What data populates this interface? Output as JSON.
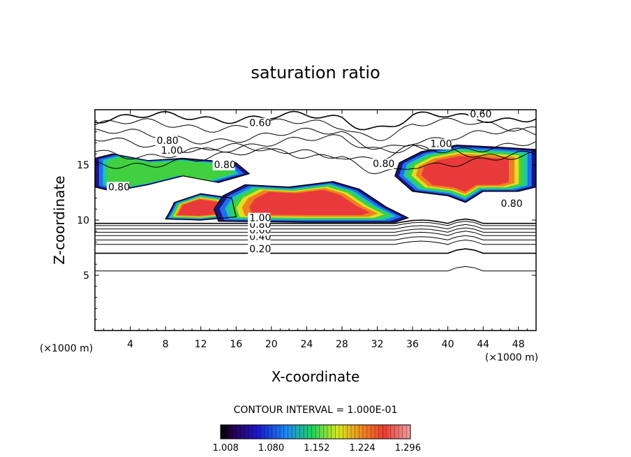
{
  "chart_data": {
    "type": "heatmap",
    "title": "saturation ratio",
    "xlabel": "X-coordinate",
    "ylabel": "Z-coordinate",
    "x_unit_label": "(×1000 m)",
    "z_unit_label": "(×1000 m)",
    "xlim": [
      0,
      50
    ],
    "ylim": [
      0,
      20
    ],
    "x_ticks": [
      "4",
      "8",
      "12",
      "16",
      "20",
      "24",
      "28",
      "32",
      "36",
      "40",
      "44",
      "48"
    ],
    "y_ticks": [
      "5",
      "10",
      "15"
    ],
    "contour_interval_text": "CONTOUR INTERVAL = 1.000E-01",
    "colorbar": {
      "colormap": "rainbow (black → blue → green → yellow → red)",
      "tick_labels": [
        "1.008",
        "1.080",
        "1.152",
        "1.224",
        "1.296"
      ],
      "range": [
        1.0,
        1.3
      ]
    },
    "contour_labels": [
      {
        "text": "0.20",
        "x": 17.5,
        "z": 7.1
      },
      {
        "text": "0.40",
        "x": 17.5,
        "z": 8.2
      },
      {
        "text": "0.60",
        "x": 17.5,
        "z": 8.8
      },
      {
        "text": "0.80",
        "x": 17.5,
        "z": 9.3
      },
      {
        "text": "1.00",
        "x": 17.5,
        "z": 9.9
      },
      {
        "text": "0.60",
        "x": 17.5,
        "z": 18.5
      },
      {
        "text": "0.80",
        "x": 7.0,
        "z": 16.9
      },
      {
        "text": "1.00",
        "x": 7.5,
        "z": 16.0
      },
      {
        "text": "0.80",
        "x": 31.5,
        "z": 14.8
      },
      {
        "text": "0.60",
        "x": 42.5,
        "z": 19.3
      },
      {
        "text": "1.00",
        "x": 38.0,
        "z": 16.6
      },
      {
        "text": "0.80",
        "x": 46.0,
        "z": 11.2
      },
      {
        "text": "0.80",
        "x": 1.5,
        "z": 12.7
      },
      {
        "text": "0.80",
        "x": 13.5,
        "z": 14.7
      }
    ],
    "supersaturated_regions": [
      {
        "name": "upper-left anvil",
        "x": [
          0,
          18
        ],
        "z": [
          12.5,
          16.0
        ],
        "peak": 1.15
      },
      {
        "name": "lower-left patch",
        "x": [
          8,
          16
        ],
        "z": [
          10.0,
          12.3
        ],
        "peak": 1.26
      },
      {
        "name": "central anvil",
        "x": [
          14,
          36
        ],
        "z": [
          9.8,
          13.6
        ],
        "peak": 1.3
      },
      {
        "name": "upper-right region",
        "x": [
          34,
          50
        ],
        "z": [
          11.5,
          16.8
        ],
        "peak": 1.3
      }
    ]
  }
}
